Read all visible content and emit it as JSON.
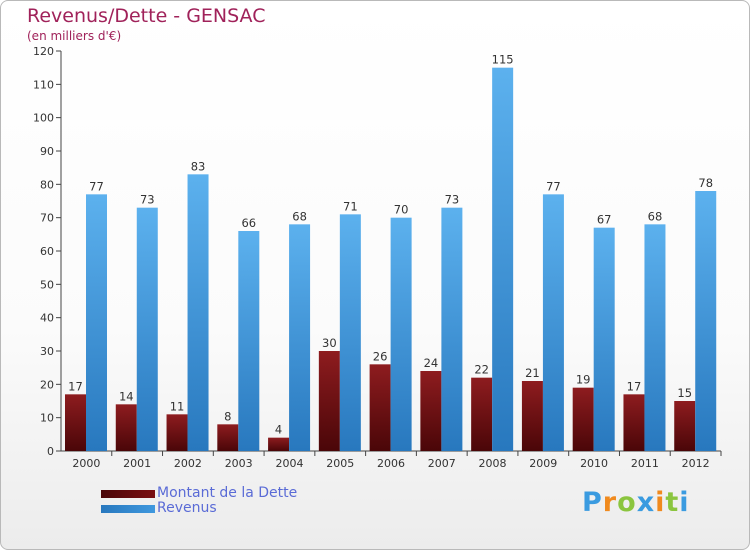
{
  "chart_data": {
    "type": "bar",
    "title": "Revenus/Dette - GENSAC",
    "subtitle": "(en milliers d'€)",
    "categories": [
      "2000",
      "2001",
      "2002",
      "2003",
      "2004",
      "2005",
      "2006",
      "2007",
      "2008",
      "2009",
      "2010",
      "2011",
      "2012"
    ],
    "series": [
      {
        "name": "Montant de la Dette",
        "color": "#7a0f12",
        "values": [
          17,
          14,
          11,
          8,
          4,
          30,
          26,
          24,
          22,
          21,
          19,
          17,
          15
        ]
      },
      {
        "name": "Revenus",
        "color": "#3f98de",
        "values": [
          77,
          73,
          83,
          66,
          68,
          71,
          70,
          73,
          115,
          77,
          67,
          68,
          78
        ]
      }
    ],
    "ylim": [
      0,
      120
    ],
    "yticks": [
      0,
      10,
      20,
      30,
      40,
      50,
      60,
      70,
      80,
      90,
      100,
      110,
      120
    ],
    "grid": false,
    "legend_position": "bottom-left"
  },
  "logo": {
    "letters": [
      {
        "ch": "P",
        "color": "#3a9be0"
      },
      {
        "ch": "r",
        "color": "#f08a1e"
      },
      {
        "ch": "o",
        "color": "#8bc53f"
      },
      {
        "ch": "x",
        "color": "#3a9be0"
      },
      {
        "ch": "i",
        "color": "#f08a1e"
      },
      {
        "ch": "t",
        "color": "#8bc53f"
      },
      {
        "ch": "i",
        "color": "#3a9be0"
      }
    ]
  }
}
